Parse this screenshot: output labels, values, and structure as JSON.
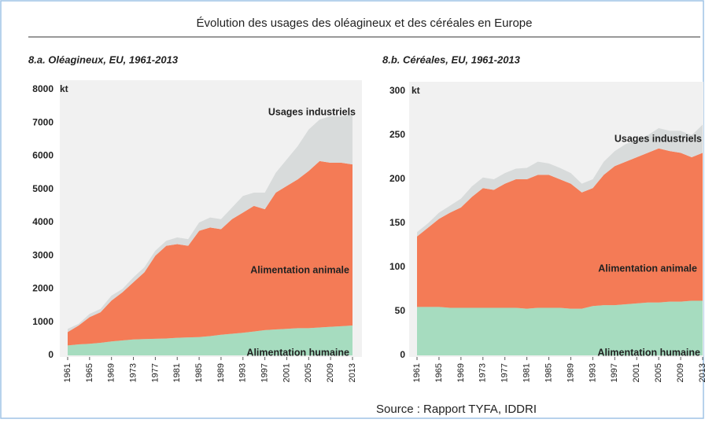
{
  "title": "Évolution des usages des oléagineux et des céréales en Europe",
  "source": "Source : Rapport TYFA, IDDRI",
  "chart_data": [
    {
      "type": "area",
      "stacked": true,
      "title": "8.a. Oléagineux, EU, 1961-2013",
      "y_label": "kt",
      "x": [
        1961,
        1963,
        1965,
        1967,
        1969,
        1971,
        1973,
        1975,
        1977,
        1979,
        1981,
        1983,
        1985,
        1987,
        1989,
        1991,
        1993,
        1995,
        1997,
        1999,
        2001,
        2003,
        2005,
        2007,
        2009,
        2011,
        2013
      ],
      "xlim": [
        1961,
        2013
      ],
      "xticks": [
        1961,
        1965,
        1969,
        1973,
        1977,
        1981,
        1985,
        1989,
        1993,
        1997,
        2001,
        2005,
        2009,
        2013
      ],
      "ylim": [
        0,
        8000
      ],
      "yticks": [
        0,
        1000,
        2000,
        3000,
        4000,
        5000,
        6000,
        7000,
        8000
      ],
      "series": [
        {
          "name": "Alimentation humaine",
          "color": "#a6dcbf",
          "values": [
            300,
            330,
            350,
            380,
            420,
            450,
            480,
            490,
            500,
            510,
            530,
            540,
            550,
            580,
            620,
            650,
            680,
            720,
            760,
            780,
            800,
            820,
            820,
            840,
            860,
            880,
            900
          ]
        },
        {
          "name": "Alimentation animale",
          "color": "#f47b56",
          "values": [
            400,
            570,
            800,
            920,
            1230,
            1450,
            1720,
            2010,
            2500,
            2790,
            2820,
            2760,
            3200,
            3270,
            3180,
            3450,
            3620,
            3780,
            3640,
            4120,
            4300,
            4480,
            4730,
            5010,
            4940,
            4920,
            4850
          ]
        },
        {
          "name": "Usages industriels",
          "color": "#d8dbdb",
          "values": [
            100,
            50,
            100,
            100,
            150,
            100,
            150,
            150,
            150,
            150,
            200,
            200,
            250,
            300,
            300,
            350,
            500,
            400,
            500,
            600,
            800,
            1000,
            1250,
            1250,
            1400,
            1400,
            1500
          ]
        }
      ]
    },
    {
      "type": "area",
      "stacked": true,
      "title": "8.b. Céréales, EU, 1961-2013",
      "y_label": "kt",
      "x": [
        1961,
        1963,
        1965,
        1967,
        1969,
        1971,
        1973,
        1975,
        1977,
        1979,
        1981,
        1983,
        1985,
        1987,
        1989,
        1991,
        1993,
        1995,
        1997,
        1999,
        2001,
        2003,
        2005,
        2007,
        2009,
        2011,
        2013
      ],
      "xlim": [
        1961,
        2013
      ],
      "xticks": [
        1961,
        1965,
        1969,
        1973,
        1977,
        1981,
        1985,
        1989,
        1993,
        1997,
        2001,
        2005,
        2009,
        2013
      ],
      "ylim": [
        0,
        300
      ],
      "yticks": [
        0,
        50,
        100,
        150,
        200,
        250,
        300
      ],
      "series": [
        {
          "name": "Alimentation humaine",
          "color": "#a6dcbf",
          "values": [
            55,
            55,
            55,
            54,
            54,
            54,
            54,
            54,
            54,
            54,
            53,
            54,
            54,
            54,
            53,
            53,
            56,
            57,
            57,
            58,
            59,
            60,
            60,
            61,
            61,
            62,
            62
          ]
        },
        {
          "name": "Alimentation animale",
          "color": "#f47b56",
          "values": [
            80,
            90,
            100,
            108,
            114,
            126,
            136,
            134,
            141,
            146,
            147,
            151,
            151,
            146,
            142,
            132,
            134,
            148,
            158,
            162,
            166,
            170,
            175,
            171,
            169,
            163,
            168
          ]
        },
        {
          "name": "Usages industriels",
          "color": "#d8dbdb",
          "values": [
            5,
            5,
            7,
            8,
            10,
            12,
            12,
            12,
            12,
            12,
            13,
            15,
            13,
            13,
            12,
            10,
            10,
            15,
            17,
            20,
            20,
            20,
            23,
            23,
            25,
            25,
            32
          ]
        }
      ]
    }
  ]
}
